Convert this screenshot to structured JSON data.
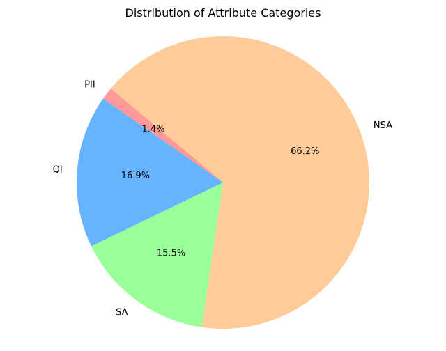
{
  "chart_data": {
    "type": "pie",
    "title": "Distribution of Attribute Categories",
    "start_angle_deg": 140,
    "direction": "counterclockwise",
    "slices": [
      {
        "label": "PII",
        "value": 1.4,
        "percent_label": "1.4%",
        "color": "#ff9999"
      },
      {
        "label": "QI",
        "value": 16.9,
        "percent_label": "16.9%",
        "color": "#66b3ff"
      },
      {
        "label": "SA",
        "value": 15.5,
        "percent_label": "15.5%",
        "color": "#99ff99"
      },
      {
        "label": "NSA",
        "value": 66.2,
        "percent_label": "66.2%",
        "color": "#ffcc99"
      }
    ]
  }
}
